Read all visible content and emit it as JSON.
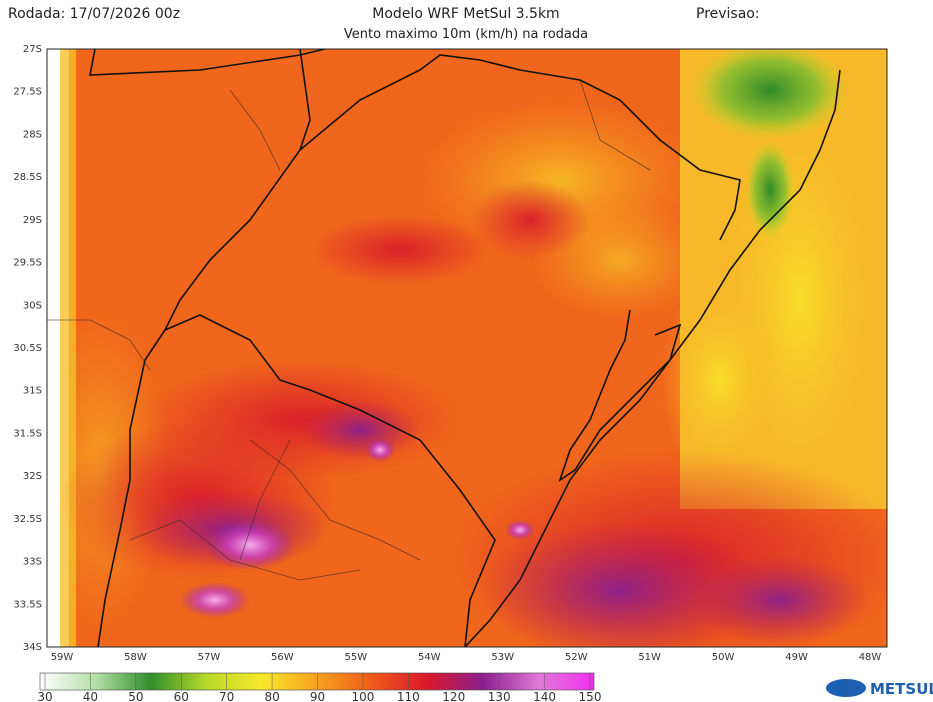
{
  "header": {
    "run": "Rodada: 17/07/2026 00z",
    "model": "Modelo WRF MetSul 3.5km",
    "variable": "Vento maximo 10m (km/h) na rodada",
    "forecast": "Previsao:"
  },
  "map": {
    "lat_labels": [
      "27S",
      "27.5S",
      "28S",
      "28.5S",
      "29S",
      "29.5S",
      "30S",
      "30.5S",
      "31S",
      "31.5S",
      "32S",
      "32.5S",
      "33S",
      "33.5S",
      "34S"
    ],
    "lon_labels": [
      "59W",
      "58W",
      "57W",
      "56W",
      "55W",
      "54W",
      "53W",
      "52W",
      "51W",
      "50W",
      "49W",
      "48W"
    ]
  },
  "colorbar": {
    "ticks": [
      30,
      40,
      50,
      60,
      70,
      80,
      90,
      100,
      110,
      120,
      130,
      140,
      150
    ]
  },
  "logo": "METSUL"
}
